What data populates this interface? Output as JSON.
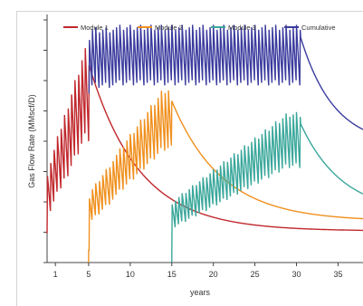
{
  "chart_data": {
    "type": "line",
    "title": "",
    "xlabel": "years",
    "ylabel": "Gas Flow Rate (MMscf/D)",
    "xlim": [
      0,
      38
    ],
    "ylim": [
      0,
      1
    ],
    "x_ticks": [
      1,
      5,
      10,
      15,
      20,
      25,
      30,
      35
    ],
    "y_ticks": [
      0,
      0.125,
      0.25,
      0.375,
      0.5,
      0.625,
      0.75,
      0.875,
      1
    ],
    "grid": false,
    "legend": "top",
    "series": [
      {
        "name": "Module 1",
        "color": "#c0282d",
        "onset": 0,
        "end": 38,
        "ramp_start": 0.12,
        "plateau_low": 0.5,
        "plateau_high": 0.9,
        "plateau_end": 5,
        "tail_end": 0.13,
        "decline_tau": 6,
        "oscillations_per_year": 2.4
      },
      {
        "name": "Module 2",
        "color": "#f0901e",
        "onset": 5,
        "end": 38,
        "ramp_start": 0.05,
        "plateau_low": 0.45,
        "plateau_high": 0.72,
        "plateau_end": 15,
        "tail_end": 0.17,
        "decline_tau": 6,
        "oscillations_per_year": 2.4
      },
      {
        "name": "Module 3",
        "color": "#3aa79b",
        "onset": 15,
        "end": 38,
        "ramp_start": 0.03,
        "plateau_low": 0.38,
        "plateau_high": 0.62,
        "plateau_end": 30.5,
        "tail_end": 0.2,
        "decline_tau": 5,
        "oscillations_per_year": 2.4
      },
      {
        "name": "Cumulative",
        "color": "#3b3c9e",
        "onset": 5,
        "end": 38,
        "ramp_start": 0.7,
        "plateau_low": 0.72,
        "plateau_high": 0.98,
        "plateau_end": 30.5,
        "tail_end": 0.48,
        "decline_tau": 4,
        "oscillations_per_year": 2.4
      }
    ]
  }
}
